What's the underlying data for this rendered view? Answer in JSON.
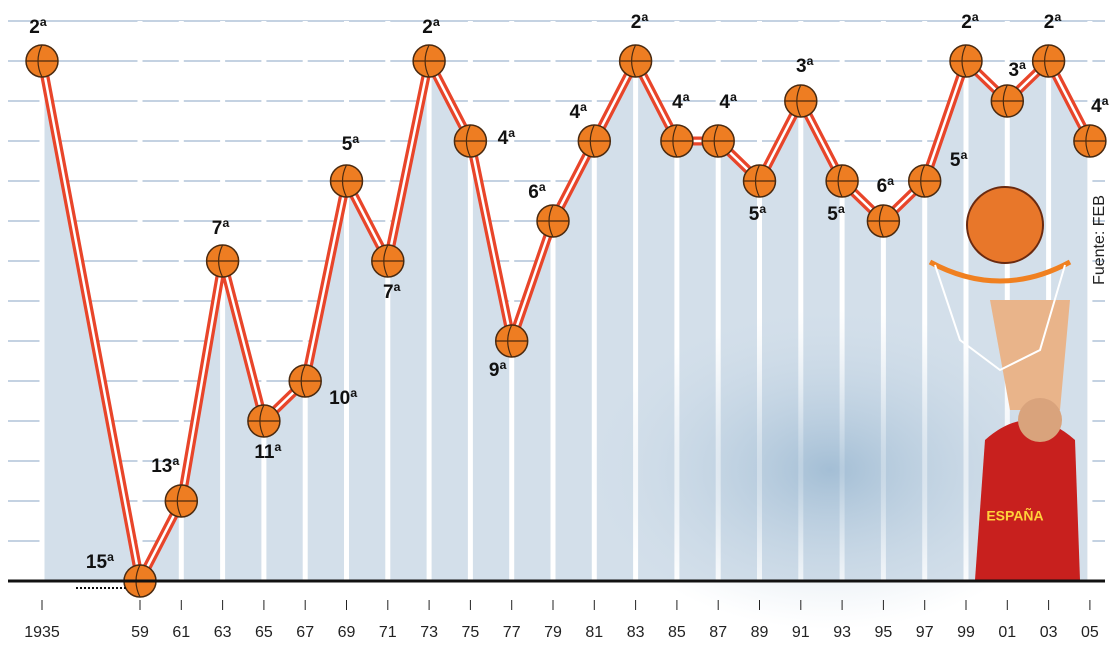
{
  "chart_data": {
    "type": "line",
    "categories": [
      "1935",
      "59",
      "61",
      "63",
      "65",
      "67",
      "69",
      "71",
      "73",
      "75",
      "77",
      "79",
      "81",
      "83",
      "85",
      "87",
      "89",
      "91",
      "93",
      "95",
      "97",
      "99",
      "01",
      "03",
      "05"
    ],
    "values": [
      2,
      15,
      13,
      7,
      11,
      10,
      5,
      7,
      2,
      4,
      9,
      6,
      4,
      2,
      4,
      4,
      5,
      3,
      5,
      6,
      5,
      2,
      3,
      2,
      4
    ],
    "value_labels": [
      "2ª",
      "15ª",
      "13ª",
      "7ª",
      "11ª",
      "10ª",
      "5ª",
      "7ª",
      "2ª",
      "4ª",
      "9ª",
      "6ª",
      "4ª",
      "2ª",
      "4ª",
      "4ª",
      "5ª",
      "3ª",
      "5ª",
      "6ª",
      "5ª",
      "2ª",
      "3ª",
      "2ª",
      "4ª"
    ],
    "ylim": [
      15,
      1
    ],
    "color": "#e8452a",
    "source": "Fuente: FEB",
    "jersey": "ESPAÑA"
  }
}
